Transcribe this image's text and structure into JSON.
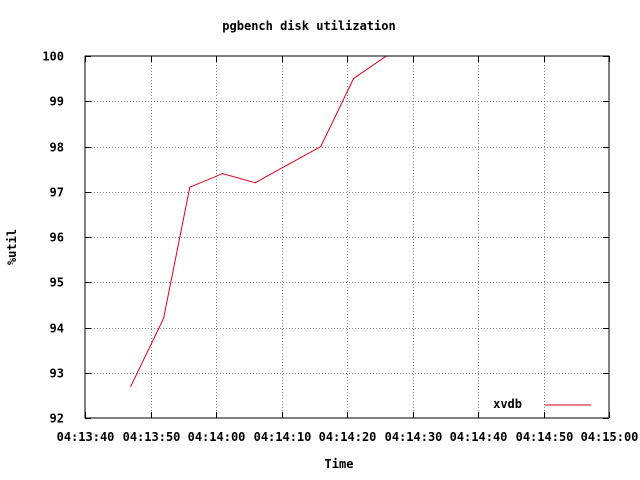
{
  "chart_data": {
    "type": "line",
    "title": "pgbench disk utilization",
    "xlabel": "Time",
    "ylabel": "%util",
    "grid": true,
    "legend": {
      "placement": "bottom-right"
    },
    "xlim": [
      "04:13:40",
      "04:15:00"
    ],
    "ylim": [
      92,
      100
    ],
    "x_ticks": [
      "04:13:40",
      "04:13:50",
      "04:14:00",
      "04:14:10",
      "04:14:20",
      "04:14:30",
      "04:14:40",
      "04:14:50",
      "04:15:00"
    ],
    "y_ticks": [
      "92",
      "93",
      "94",
      "95",
      "96",
      "97",
      "98",
      "99",
      "100"
    ],
    "series": [
      {
        "name": "xvdb",
        "color": "#e0001c",
        "x": [
          "04:13:47",
          "04:13:52",
          "04:13:56",
          "04:14:01",
          "04:14:06",
          "04:14:11",
          "04:14:16",
          "04:14:21",
          "04:14:26"
        ],
        "y": [
          92.7,
          94.2,
          97.1,
          97.4,
          97.2,
          97.6,
          98.0,
          99.5,
          100.0
        ]
      }
    ]
  }
}
